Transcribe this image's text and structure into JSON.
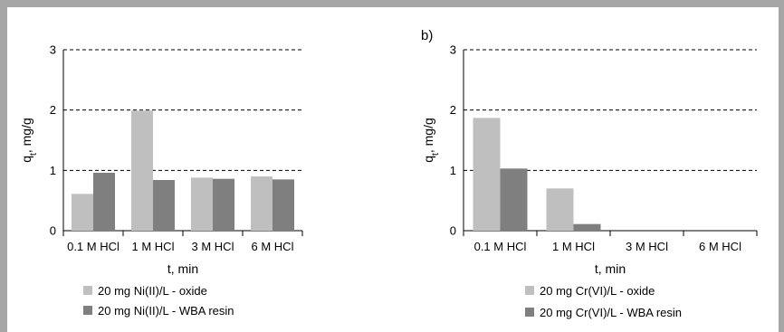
{
  "colors": {
    "oxide": "#bfbfbf",
    "resin": "#7f7f7f",
    "frame": "#a6a6a6"
  },
  "chart_data": [
    {
      "type": "bar",
      "panel_label": "",
      "categories": [
        "0.1 M HCl",
        "1  M HCl",
        "3 M HCl",
        "6 M HCl"
      ],
      "xlabel": "t, min",
      "ylabel_main": "q",
      "ylabel_sub": "t",
      "ylabel_rest": ", mg/g",
      "ylim": [
        0,
        3
      ],
      "yticks": [
        "0",
        "1",
        "2",
        "3"
      ],
      "grid": "dashed horizontal",
      "legend_position": "bottom",
      "series": [
        {
          "name": "20 mg Ni(II)/L - oxide",
          "values": [
            0.61,
            1.99,
            0.88,
            0.9
          ]
        },
        {
          "name": "20 mg Ni(II)/L - WBA resin",
          "values": [
            0.96,
            0.84,
            0.86,
            0.85
          ]
        }
      ]
    },
    {
      "type": "bar",
      "panel_label": "b)",
      "categories": [
        "0.1 M HCl",
        "1  M HCl",
        "3 M HCl",
        "6 M HCl"
      ],
      "xlabel": "t, min",
      "ylabel_main": "q",
      "ylabel_sub": "t",
      "ylabel_rest": ", mg/g",
      "ylim": [
        0,
        3
      ],
      "yticks": [
        "0",
        "1",
        "2",
        "3"
      ],
      "grid": "dashed horizontal",
      "legend_position": "bottom",
      "series": [
        {
          "name": "20 mg Cr(VI)/L - oxide",
          "values": [
            1.87,
            0.7,
            0.0,
            0.0
          ]
        },
        {
          "name": "20 mg Cr(VI)/L - WBA resin",
          "values": [
            1.03,
            0.11,
            0.0,
            0.0
          ]
        }
      ]
    }
  ]
}
